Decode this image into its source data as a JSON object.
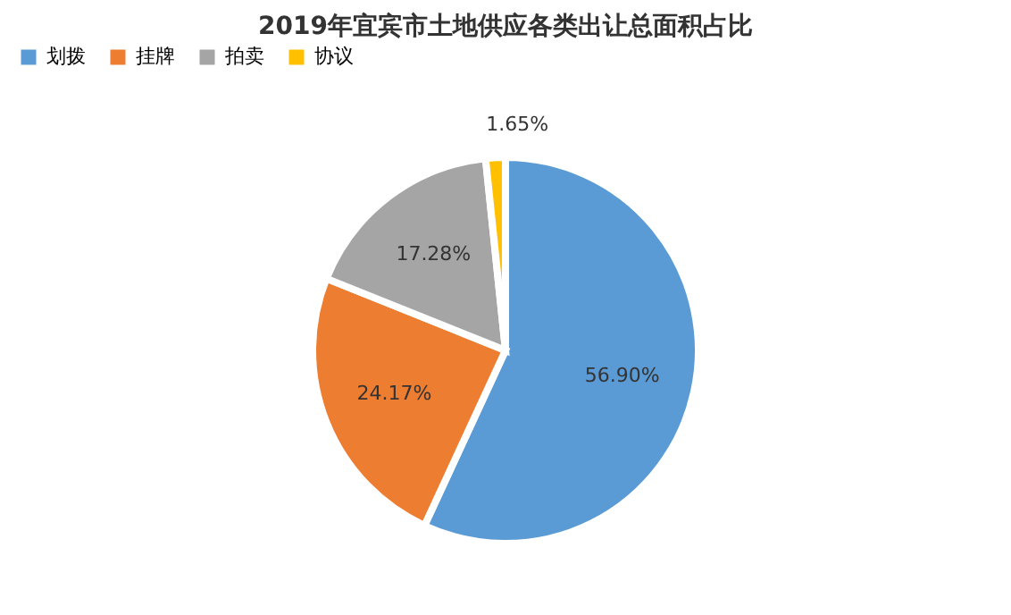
{
  "chart_data": {
    "type": "pie",
    "title": "2019年宜宾市土地供应各类出让总面积占比",
    "categories": [
      "划拨",
      "挂牌",
      "拍卖",
      "协议"
    ],
    "values": [
      56.9,
      24.17,
      17.28,
      1.65
    ],
    "colors": [
      "#5b9bd5",
      "#ed7d31",
      "#a5a5a5",
      "#ffc000"
    ],
    "value_labels": [
      "56.90%",
      "24.17%",
      "17.28%",
      "1.65%"
    ],
    "legend": "top"
  }
}
